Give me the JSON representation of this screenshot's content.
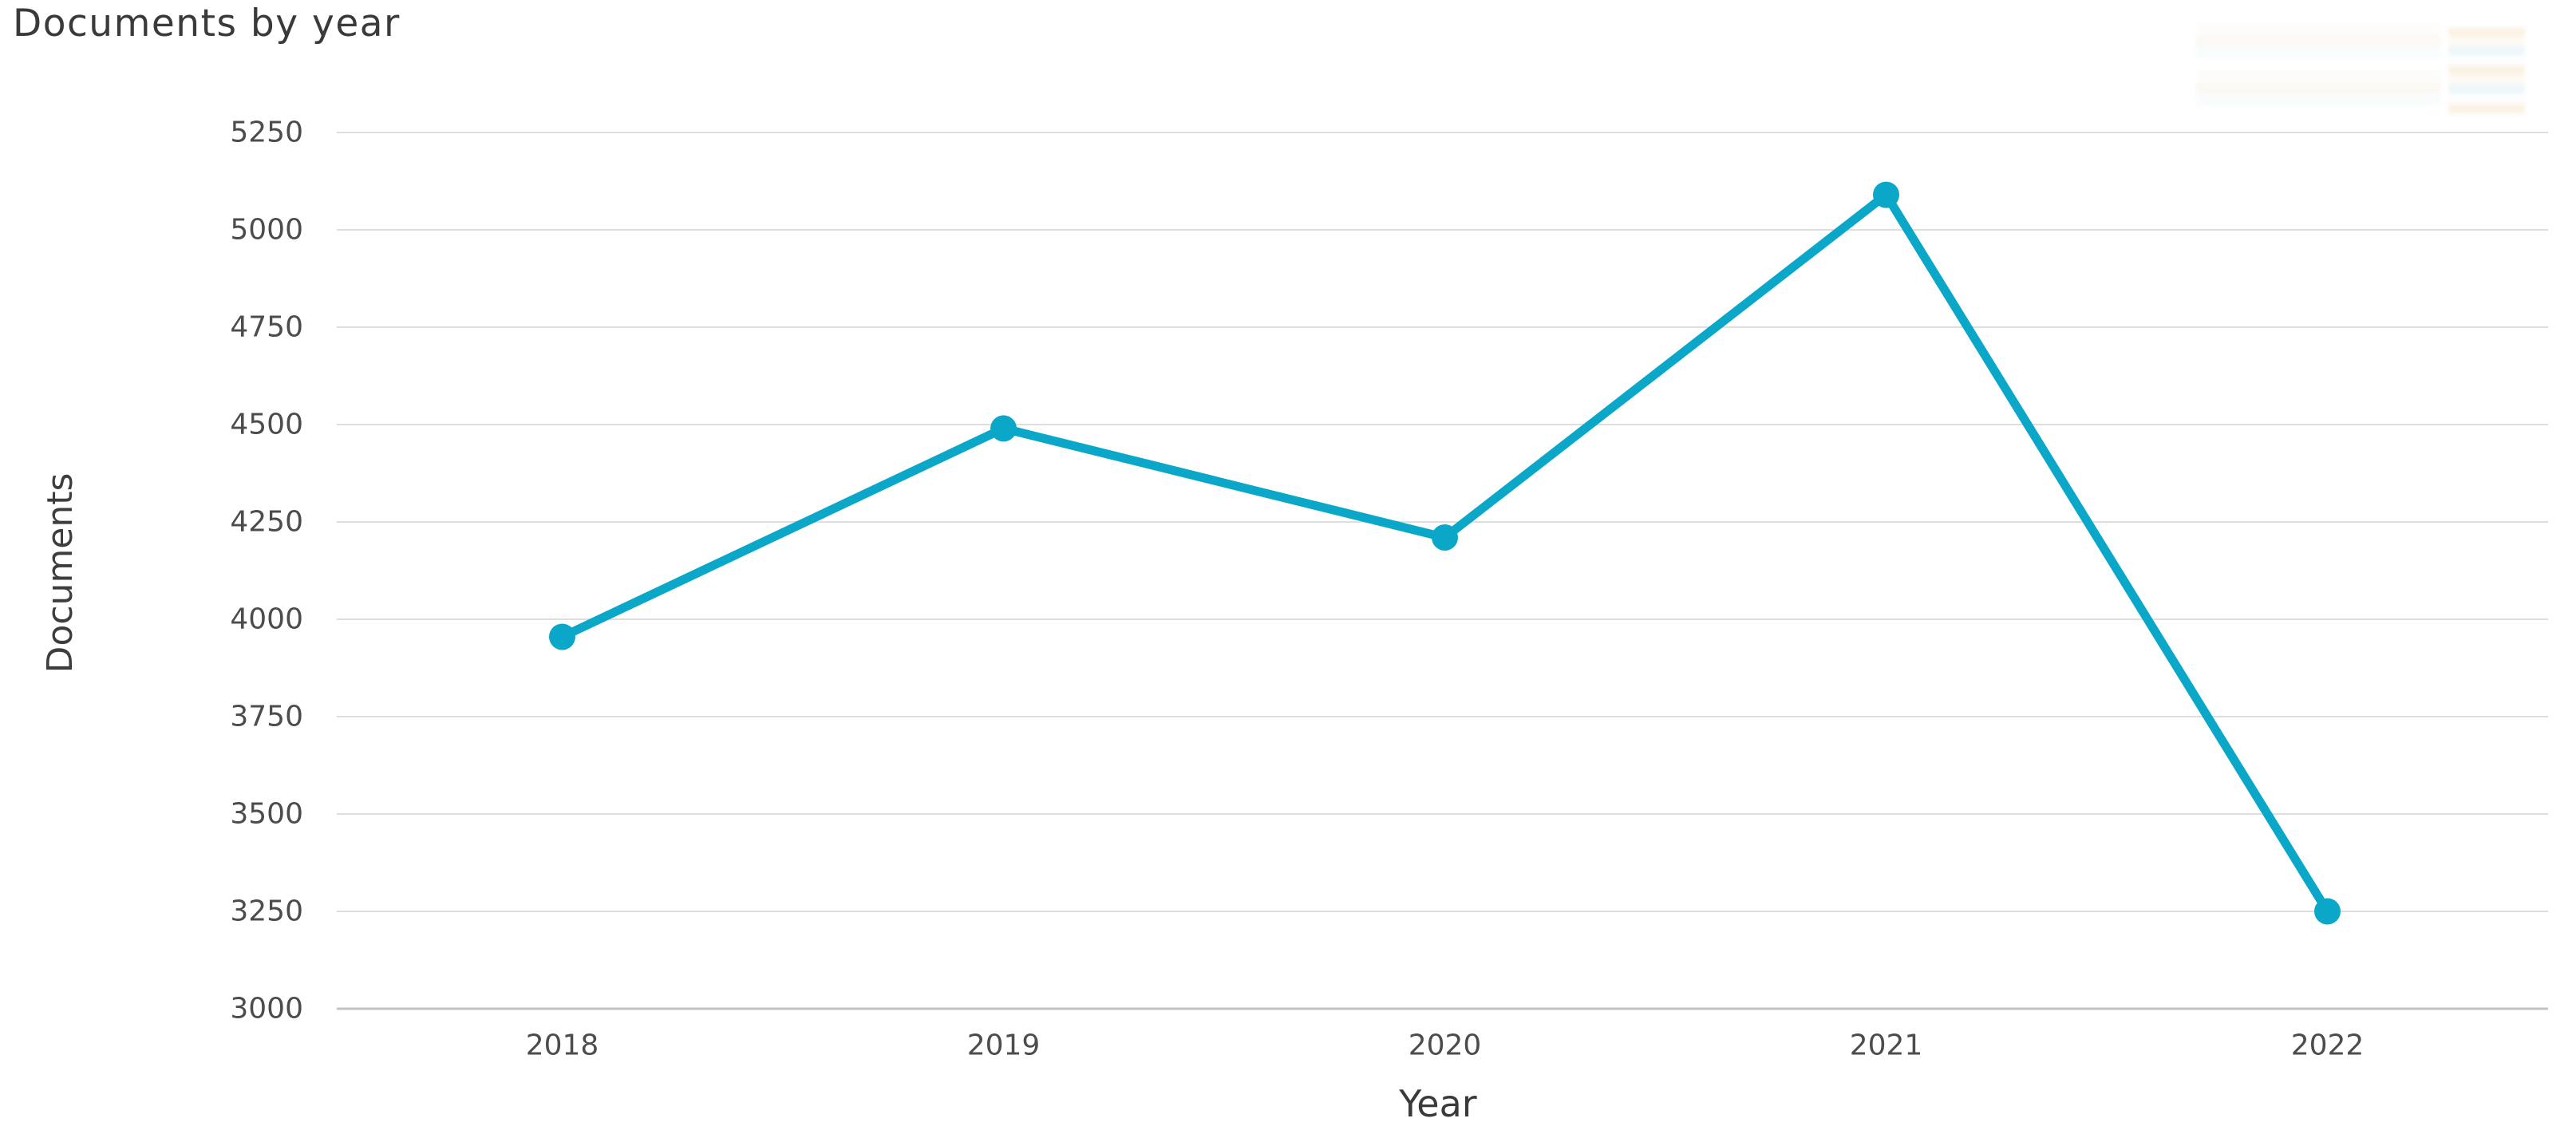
{
  "chart_data": {
    "type": "line",
    "title": "Documents by year",
    "xlabel": "Year",
    "ylabel": "Documents",
    "categories": [
      "2018",
      "2019",
      "2020",
      "2021",
      "2022"
    ],
    "series": [
      {
        "name": "Documents",
        "values": [
          3955,
          4490,
          4210,
          5090,
          3250
        ]
      }
    ],
    "ylim": [
      3000,
      5250
    ],
    "yticks": [
      3000,
      3250,
      3500,
      3750,
      4000,
      4250,
      4500,
      4750,
      5000,
      5250
    ],
    "grid": "horizontal",
    "legend": "none",
    "marker": "circle"
  },
  "colors": {
    "line": "#0aa7c9",
    "marker": "#0aa7c9",
    "gridline": "#dedede",
    "axis_line": "#c3c3c3",
    "title_text": "#3a3a3a",
    "tick_text": "#4c4c4c",
    "background": "#ffffff"
  }
}
